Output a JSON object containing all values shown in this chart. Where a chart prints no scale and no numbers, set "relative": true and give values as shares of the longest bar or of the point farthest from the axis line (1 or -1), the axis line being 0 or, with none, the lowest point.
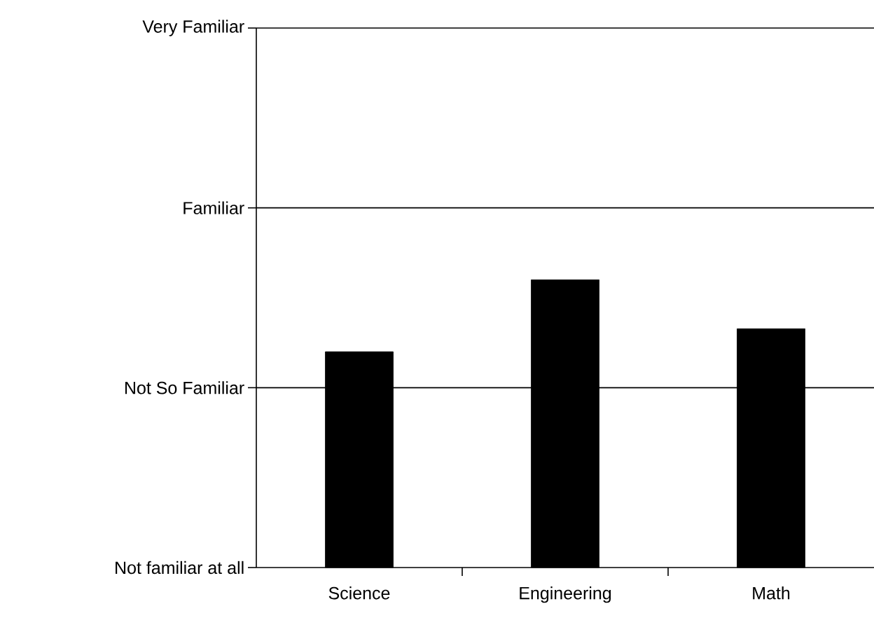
{
  "chart_data": {
    "type": "bar",
    "relative": true,
    "categories": [
      "Science",
      "Engineering",
      "Math"
    ],
    "values": [
      0.75,
      1,
      0.83
    ],
    "color": "#000000",
    "annotations": [
      "Not familiar at all"
    ],
    "ref_lines": [
      {
        "axis": "y",
        "value": 0.625,
        "label": "Not So Familiar",
        "color": "#000000"
      },
      {
        "axis": "y",
        "value": 1.25,
        "label": "Familiar",
        "color": "#000000"
      },
      {
        "axis": "y",
        "value": 1.875,
        "label": "Very Familiar",
        "color": "#000000"
      }
    ]
  }
}
